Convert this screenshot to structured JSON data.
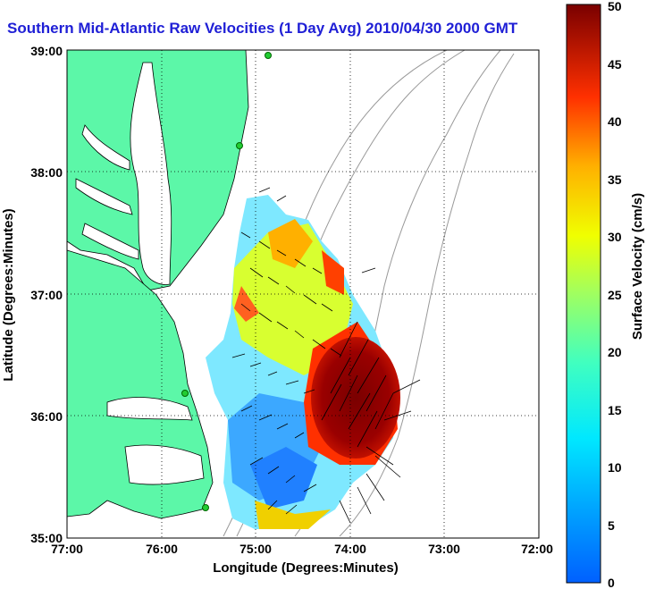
{
  "title": "Southern Mid-Atlantic Raw Velocities (1 Day Avg) 2010/04/30 2000 GMT",
  "x_axis": {
    "label": "Longitude (Degrees:Minutes)",
    "ticks": [
      "77:00",
      "76:00",
      "75:00",
      "74:00",
      "73:00",
      "72:00"
    ]
  },
  "y_axis": {
    "label": "Latitude (Degrees:Minutes)",
    "ticks": [
      "39:00",
      "38:00",
      "37:00",
      "36:00",
      "35:00"
    ]
  },
  "colorbar": {
    "label": "Surface Velocity (cm/s)",
    "ticks": [
      "0",
      "5",
      "10",
      "15",
      "20",
      "25",
      "30",
      "35",
      "40",
      "45",
      "50"
    ],
    "min": 0,
    "max": 50
  },
  "colors": {
    "land": "#5cf7a8",
    "title": "#1f1fd6",
    "bathymetry": "#999999",
    "station_marker": "#22cc33"
  },
  "map_extent": {
    "lon_min": -77,
    "lon_max": -72,
    "lat_min": 35,
    "lat_max": 39
  }
}
